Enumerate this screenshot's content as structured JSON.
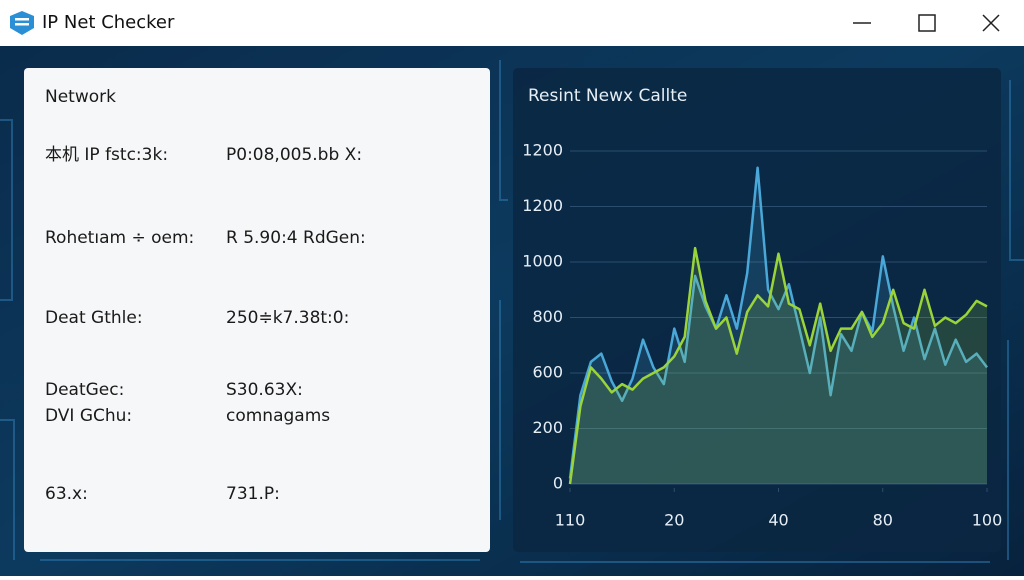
{
  "window": {
    "title": "IP Net Checker"
  },
  "network_panel": {
    "title": "Network",
    "rows": [
      {
        "label": "本机 IP fstc:3k:",
        "value": "P0:08,005.bb X:"
      },
      {
        "label": "Rohetıam ÷ oem:",
        "value": "R 5.90:4 RdGen:"
      },
      {
        "label": "Deat Gthle:",
        "value": "250≑k7.38t:0:"
      },
      {
        "label": [
          "DeatGec:",
          "DVI GChu:"
        ],
        "value": [
          "S30.63X:",
          "comnagams"
        ]
      },
      {
        "label": "63.x:",
        "value": "731.P:"
      }
    ]
  },
  "chart_data": {
    "type": "line",
    "title": "Resint Newx Callte",
    "x": [
      0,
      2.5,
      5,
      7.5,
      10,
      12.5,
      15,
      17.5,
      20,
      22.5,
      25,
      27.5,
      30,
      32.5,
      35,
      37.5,
      40,
      42.5,
      45,
      47.5,
      50,
      52.5,
      55,
      57.5,
      60,
      62.5,
      65,
      67.5,
      70,
      72.5,
      75,
      77.5,
      80,
      82.5,
      85,
      87.5,
      90,
      92.5,
      95,
      97.5,
      100
    ],
    "series": [
      {
        "color": "#4aa8d8",
        "values": [
          20,
          320,
          440,
          470,
          370,
          300,
          380,
          520,
          420,
          360,
          560,
          440,
          750,
          640,
          560,
          680,
          560,
          760,
          1140,
          700,
          630,
          720,
          560,
          400,
          600,
          320,
          540,
          480,
          620,
          550,
          820,
          640,
          480,
          600,
          450,
          560,
          430,
          520,
          440,
          470,
          420
        ]
      },
      {
        "color": "#9ad43a",
        "values": [
          0,
          280,
          420,
          380,
          330,
          360,
          340,
          380,
          400,
          420,
          460,
          530,
          850,
          660,
          560,
          600,
          470,
          620,
          680,
          640,
          830,
          650,
          630,
          500,
          650,
          480,
          560,
          560,
          620,
          530,
          580,
          700,
          580,
          560,
          700,
          570,
          600,
          580,
          610,
          660,
          640
        ]
      }
    ],
    "xlim": [
      0,
      100
    ],
    "xticks": [
      {
        "value": 0,
        "label": "110"
      },
      {
        "value": 25,
        "label": "20"
      },
      {
        "value": 50,
        "label": "40"
      },
      {
        "value": 75,
        "label": "80"
      },
      100
    ],
    "ylim": [
      0,
      1200
    ],
    "yticks": [
      0,
      200,
      {
        "value": 400,
        "label": "600"
      },
      {
        "value": 600,
        "label": "800"
      },
      {
        "value": 800,
        "label": "1000"
      },
      {
        "value": 1000,
        "label": "1200"
      },
      1200
    ],
    "grid": true
  }
}
